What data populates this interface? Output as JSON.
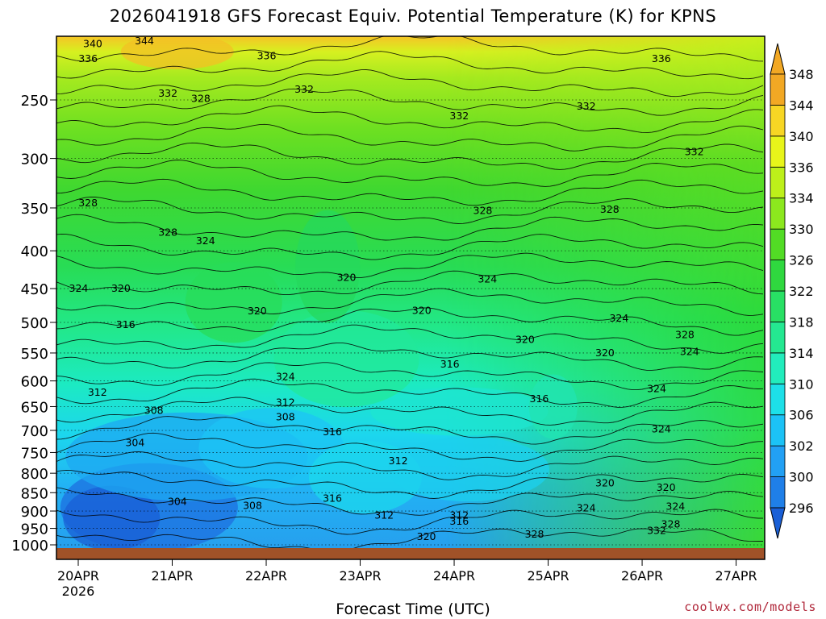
{
  "chart_data": {
    "type": "heatmap",
    "title": "2026041918 GFS Forecast Equiv. Potential Temperature (K) for KPNS",
    "xlabel": "Forecast Time (UTC)",
    "ylabel": "",
    "x_start_label": "2026",
    "x_ticks": [
      "20APR",
      "21APR",
      "22APR",
      "23APR",
      "24APR",
      "25APR",
      "26APR",
      "27APR"
    ],
    "y_ticks": [
      250,
      300,
      350,
      400,
      450,
      500,
      550,
      600,
      650,
      700,
      750,
      800,
      850,
      900,
      950,
      1000
    ],
    "ylim": [
      1020,
      200
    ],
    "colorbar": {
      "levels": [
        296,
        300,
        302,
        306,
        310,
        314,
        318,
        322,
        326,
        330,
        334,
        336,
        340,
        344,
        348
      ],
      "colors": [
        "#1a5fd6",
        "#1f7fe8",
        "#22a0f4",
        "#1cc2f6",
        "#1de0e8",
        "#22ecbc",
        "#24e891",
        "#28e064",
        "#2fd83f",
        "#52dc25",
        "#8ce81e",
        "#bdf01a",
        "#e8f51a",
        "#f7d624",
        "#f2a824"
      ]
    },
    "contour_labels": [
      {
        "text": "340",
        "t": 0.3,
        "p": 210
      },
      {
        "text": "344",
        "t": 0.85,
        "p": 208
      },
      {
        "text": "336",
        "t": 0.25,
        "p": 220
      },
      {
        "text": "336",
        "t": 2.15,
        "p": 218
      },
      {
        "text": "336",
        "t": 6.35,
        "p": 220
      },
      {
        "text": "332",
        "t": 1.1,
        "p": 245
      },
      {
        "text": "328",
        "t": 1.45,
        "p": 249
      },
      {
        "text": "332",
        "t": 2.55,
        "p": 242
      },
      {
        "text": "332",
        "t": 4.2,
        "p": 263
      },
      {
        "text": "332",
        "t": 5.55,
        "p": 255
      },
      {
        "text": "332",
        "t": 6.7,
        "p": 294
      },
      {
        "text": "328",
        "t": 0.25,
        "p": 345
      },
      {
        "text": "328",
        "t": 1.1,
        "p": 378
      },
      {
        "text": "324",
        "t": 1.5,
        "p": 388
      },
      {
        "text": "328",
        "t": 4.45,
        "p": 353
      },
      {
        "text": "328",
        "t": 5.8,
        "p": 352
      },
      {
        "text": "324",
        "t": 0.15,
        "p": 450
      },
      {
        "text": "320",
        "t": 0.6,
        "p": 450
      },
      {
        "text": "320",
        "t": 3.0,
        "p": 435
      },
      {
        "text": "324",
        "t": 4.5,
        "p": 437
      },
      {
        "text": "320",
        "t": 2.05,
        "p": 483
      },
      {
        "text": "320",
        "t": 3.8,
        "p": 482
      },
      {
        "text": "316",
        "t": 0.65,
        "p": 504
      },
      {
        "text": "320",
        "t": 4.9,
        "p": 528
      },
      {
        "text": "324",
        "t": 5.9,
        "p": 494
      },
      {
        "text": "328",
        "t": 6.6,
        "p": 520
      },
      {
        "text": "324",
        "t": 6.65,
        "p": 548
      },
      {
        "text": "320",
        "t": 5.75,
        "p": 550
      },
      {
        "text": "316",
        "t": 4.1,
        "p": 570
      },
      {
        "text": "324",
        "t": 2.35,
        "p": 592
      },
      {
        "text": "324",
        "t": 6.3,
        "p": 615
      },
      {
        "text": "312",
        "t": 0.35,
        "p": 622
      },
      {
        "text": "312",
        "t": 2.35,
        "p": 642
      },
      {
        "text": "316",
        "t": 5.05,
        "p": 635
      },
      {
        "text": "308",
        "t": 0.95,
        "p": 658
      },
      {
        "text": "308",
        "t": 2.35,
        "p": 672
      },
      {
        "text": "316",
        "t": 2.85,
        "p": 704
      },
      {
        "text": "324",
        "t": 6.35,
        "p": 697
      },
      {
        "text": "304",
        "t": 0.75,
        "p": 728
      },
      {
        "text": "312",
        "t": 3.55,
        "p": 770
      },
      {
        "text": "320",
        "t": 5.75,
        "p": 825
      },
      {
        "text": "320",
        "t": 6.4,
        "p": 837
      },
      {
        "text": "316",
        "t": 2.85,
        "p": 866
      },
      {
        "text": "304",
        "t": 1.2,
        "p": 874
      },
      {
        "text": "308",
        "t": 2.0,
        "p": 885
      },
      {
        "text": "324",
        "t": 5.55,
        "p": 892
      },
      {
        "text": "324",
        "t": 6.5,
        "p": 888
      },
      {
        "text": "312",
        "t": 3.4,
        "p": 912
      },
      {
        "text": "312",
        "t": 4.2,
        "p": 912
      },
      {
        "text": "316",
        "t": 4.2,
        "p": 930
      },
      {
        "text": "328",
        "t": 6.45,
        "p": 938
      },
      {
        "text": "332",
        "t": 6.3,
        "p": 957
      },
      {
        "text": "320",
        "t": 3.85,
        "p": 975
      },
      {
        "text": "328",
        "t": 5.0,
        "p": 968
      }
    ]
  },
  "watermark": "coolwx.com/models"
}
